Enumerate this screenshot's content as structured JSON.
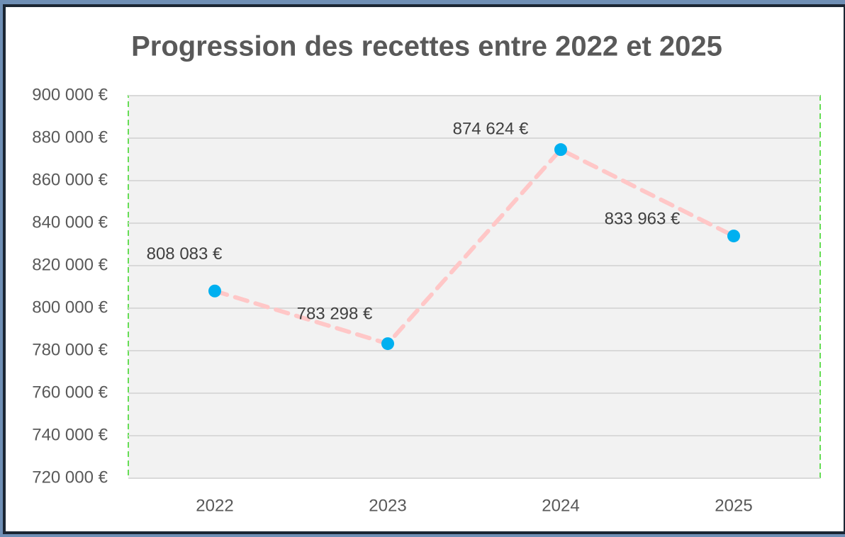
{
  "chart_data": {
    "type": "line",
    "title": "Progression des recettes entre 2022 et 2025",
    "categories": [
      "2022",
      "2023",
      "2024",
      "2025"
    ],
    "values": [
      808083,
      783298,
      874624,
      833963
    ],
    "value_labels": [
      "808 083 €",
      "783 298 €",
      "874 624 €",
      "833 963 €"
    ],
    "color": "#ffc7c7",
    "marker_color": "#00b0f0",
    "ylim": [
      720000,
      900000
    ],
    "yticks": [
      {
        "value": 720000,
        "label": "720 000 €"
      },
      {
        "value": 740000,
        "label": "740 000 €"
      },
      {
        "value": 760000,
        "label": "760 000 €"
      },
      {
        "value": 780000,
        "label": "780 000 €"
      },
      {
        "value": 800000,
        "label": "800 000 €"
      },
      {
        "value": 820000,
        "label": "820 000 €"
      },
      {
        "value": 840000,
        "label": "840 000 €"
      },
      {
        "value": 860000,
        "label": "860 000 €"
      },
      {
        "value": 880000,
        "label": "880 000 €"
      },
      {
        "value": 900000,
        "label": "900 000 €"
      }
    ],
    "grid": true
  }
}
